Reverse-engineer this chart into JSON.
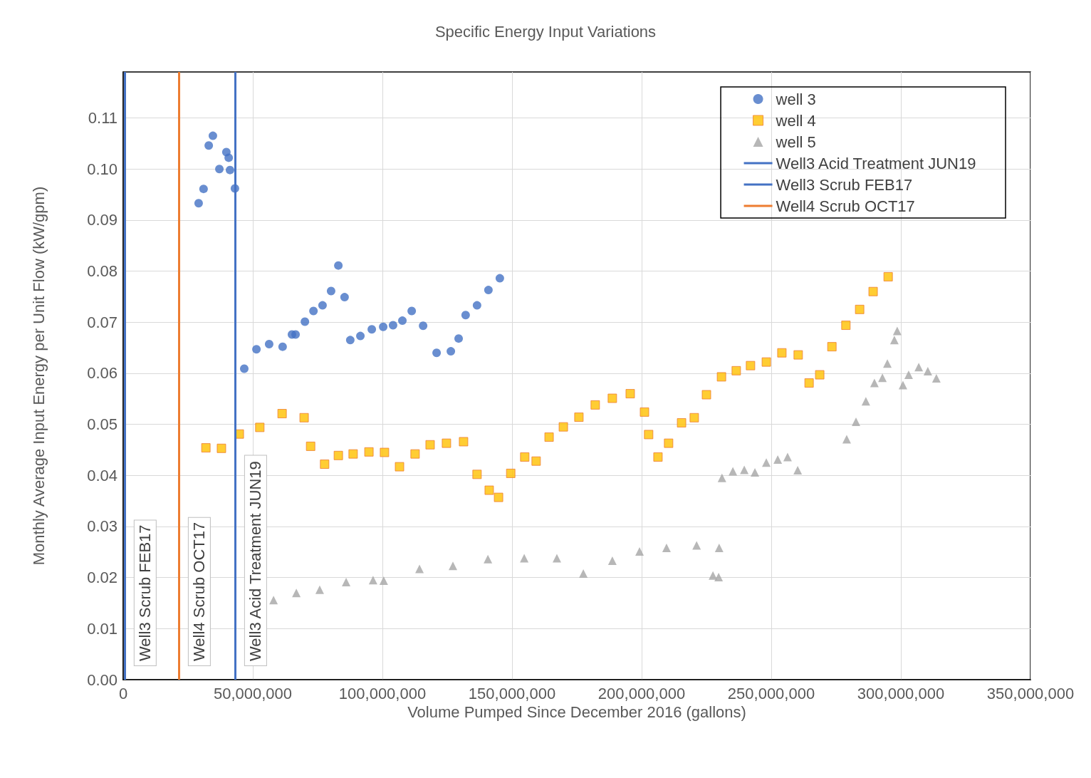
{
  "chart_data": {
    "type": "scatter",
    "title": "Specific Energy Input Variations",
    "xlabel": "Volume Pumped Since December 2016 (gallons)",
    "ylabel": "Monthly Average Input Energy per Unit Flow (kW/gpm)",
    "xlim": [
      0,
      350000000
    ],
    "xticks": [
      0,
      {
        "value": 50000000,
        "label": "50,000,000"
      },
      {
        "value": 100000000,
        "label": "100,000,000"
      },
      {
        "value": 150000000,
        "label": "150,000,000"
      },
      {
        "value": 200000000,
        "label": "200,000,000"
      },
      {
        "value": 250000000,
        "label": "250,000,000"
      },
      {
        "value": 300000000,
        "label": "300,000,000"
      },
      {
        "value": 350000000,
        "label": "350,000,000"
      }
    ],
    "ylim": [
      0,
      0.119
    ],
    "yticks": [
      {
        "value": 0,
        "label": "0.00"
      },
      {
        "value": 0.01,
        "label": "0.01"
      },
      {
        "value": 0.02,
        "label": "0.02"
      },
      {
        "value": 0.03,
        "label": "0.03"
      },
      {
        "value": 0.04,
        "label": "0.04"
      },
      {
        "value": 0.05,
        "label": "0.05"
      },
      {
        "value": 0.06,
        "label": "0.06"
      },
      {
        "value": 0.07,
        "label": "0.07"
      },
      {
        "value": 0.08,
        "label": "0.08"
      },
      {
        "value": 0.09,
        "label": "0.09"
      },
      {
        "value": 0.1,
        "label": "0.10"
      },
      {
        "value": 0.11,
        "label": "0.11"
      }
    ],
    "grid": true,
    "legend": "top right",
    "series": [
      {
        "name": "well 3",
        "color": "#4472c4",
        "marker": "circle",
        "x": [
          29100000,
          31000000,
          33000000,
          34600000,
          37100000,
          39800000,
          40700000,
          41200000,
          43100000,
          46700000,
          51400000,
          56300000,
          61500000,
          65100000,
          66500000,
          70100000,
          73400000,
          76900000,
          80200000,
          83000000,
          85400000,
          87600000,
          91500000,
          95900000,
          100300000,
          104100000,
          107700000,
          111300000,
          115700000,
          120900000,
          126400000,
          129400000,
          132100000,
          136500000,
          140900000,
          145300000
        ],
        "values": [
          0.0933,
          0.0961,
          0.1046,
          0.1065,
          0.1,
          0.1033,
          0.1022,
          0.0998,
          0.0962,
          0.0609,
          0.0647,
          0.0657,
          0.0652,
          0.0676,
          0.0676,
          0.0701,
          0.0722,
          0.0733,
          0.0761,
          0.0811,
          0.0749,
          0.0665,
          0.0673,
          0.0686,
          0.0691,
          0.0694,
          0.0703,
          0.0722,
          0.0693,
          0.064,
          0.0643,
          0.0668,
          0.0714,
          0.0733,
          0.0763,
          0.0786
        ]
      },
      {
        "name": "well 4",
        "color": "#ffc000",
        "marker": "square",
        "x": [
          31900000,
          37900000,
          44800000,
          52700000,
          61300000,
          69800000,
          72300000,
          77700000,
          83000000,
          88700000,
          94800000,
          100800000,
          106600000,
          112600000,
          118400000,
          124700000,
          131300000,
          136500000,
          141200000,
          144800000,
          149500000,
          154900000,
          159300000,
          164300000,
          169800000,
          175800000,
          182100000,
          188700000,
          195600000,
          201100000,
          202700000,
          206300000,
          210400000,
          215400000,
          220300000,
          225000000,
          230800000,
          236500000,
          242000000,
          248100000,
          254100000,
          260400000,
          264600000,
          268700000,
          273400000,
          278800000,
          284100000,
          289300000,
          295100000
        ],
        "values": [
          0.0454,
          0.0453,
          0.0481,
          0.0494,
          0.0521,
          0.0513,
          0.0457,
          0.0422,
          0.0439,
          0.0442,
          0.0446,
          0.0445,
          0.0417,
          0.0442,
          0.046,
          0.0463,
          0.0466,
          0.0402,
          0.0371,
          0.0357,
          0.0404,
          0.0436,
          0.0428,
          0.0475,
          0.0495,
          0.0514,
          0.0538,
          0.0551,
          0.056,
          0.0524,
          0.048,
          0.0436,
          0.0463,
          0.0503,
          0.0513,
          0.0558,
          0.0593,
          0.0605,
          0.0615,
          0.0622,
          0.064,
          0.0636,
          0.0581,
          0.0597,
          0.0652,
          0.0694,
          0.0725,
          0.076,
          0.0789
        ]
      },
      {
        "name": "well 5",
        "color": "#a5a5a5",
        "marker": "triangle",
        "x": [
          58000000,
          66800000,
          75800000,
          86000000,
          96400000,
          100500000,
          114300000,
          127200000,
          140700000,
          154700000,
          167300000,
          177500000,
          188700000,
          199200000,
          209600000,
          221200000,
          227500000,
          229700000,
          229900000,
          231000000,
          235200000,
          239600000,
          243700000,
          248100000,
          252500000,
          256300000,
          260200000,
          279100000,
          282700000,
          286500000,
          289800000,
          292900000,
          294800000,
          297500000,
          298600000,
          300800000,
          303000000,
          306900000,
          310400000,
          313700000
        ],
        "values": [
          0.0156,
          0.017,
          0.0176,
          0.0191,
          0.0195,
          0.0194,
          0.0217,
          0.0223,
          0.0236,
          0.0238,
          0.0238,
          0.0208,
          0.0233,
          0.0251,
          0.0258,
          0.0263,
          0.0204,
          0.0201,
          0.0258,
          0.0395,
          0.0408,
          0.0411,
          0.0406,
          0.0425,
          0.0431,
          0.0436,
          0.041,
          0.0471,
          0.0505,
          0.0545,
          0.0581,
          0.0591,
          0.0619,
          0.0665,
          0.0683,
          0.0577,
          0.0597,
          0.0612,
          0.0604,
          0.059
        ]
      }
    ],
    "ref_lines": [
      {
        "axis": "x",
        "value": 43100000,
        "label": "Well3 Acid Treatment JUN19",
        "color": "#4472c4"
      },
      {
        "axis": "x",
        "value": 500000,
        "label": "Well3 Scrub FEB17",
        "color": "#4472c4"
      },
      {
        "axis": "x",
        "value": 21400000,
        "label": "Well4 Scrub OCT17",
        "color": "#ed7d31"
      }
    ]
  }
}
